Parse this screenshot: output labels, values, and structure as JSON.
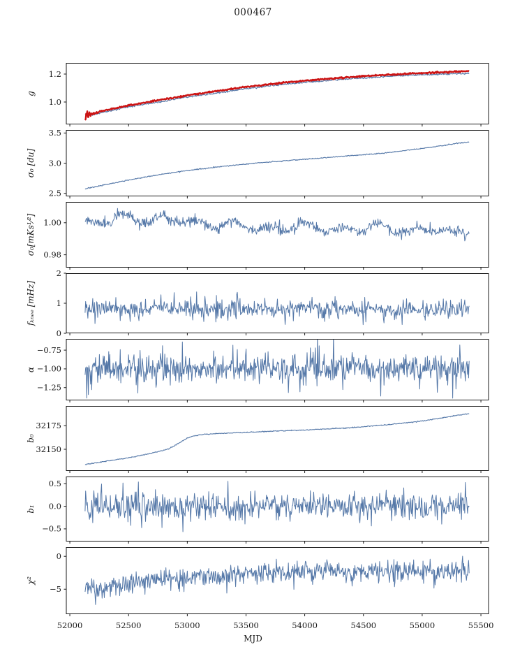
{
  "chart_data": {
    "type": "line",
    "title": "000467",
    "xlabel": "MJD",
    "xlim": [
      51970,
      55565
    ],
    "x_start": 52130,
    "x_end": 55400,
    "n_points": 700,
    "grid": false,
    "legend": "none",
    "colors": {
      "line_blue": "#5578a8",
      "line_red": "#cc1414",
      "axis": "#000000"
    },
    "xticks": [
      {
        "v": 52000,
        "label": "52000"
      },
      {
        "v": 52500,
        "label": "52500"
      },
      {
        "v": 53000,
        "label": "53000"
      },
      {
        "v": 53500,
        "label": "53500"
      },
      {
        "v": 54000,
        "label": "54000"
      },
      {
        "v": 54500,
        "label": "54500"
      },
      {
        "v": 55000,
        "label": "55000"
      },
      {
        "v": 55500,
        "label": "55500"
      }
    ],
    "panels": [
      {
        "id": "g",
        "ylabel": "g",
        "ylim": [
          0.84,
          1.28
        ],
        "yticks": [
          {
            "v": 1.0,
            "label": "1.0"
          },
          {
            "v": 1.2,
            "label": "1.2"
          }
        ],
        "series": [
          {
            "name": "g-fit-blue",
            "color": "#5578a8",
            "width": 1.1,
            "noise": 0.003,
            "trend": [
              [
                52130,
                0.915
              ],
              [
                52180,
                0.905
              ],
              [
                52300,
                0.93
              ],
              [
                52500,
                0.965
              ],
              [
                52750,
                1.0
              ],
              [
                53000,
                1.035
              ],
              [
                53250,
                1.065
              ],
              [
                53500,
                1.095
              ],
              [
                53750,
                1.12
              ],
              [
                54000,
                1.14
              ],
              [
                54250,
                1.158
              ],
              [
                54500,
                1.173
              ],
              [
                54750,
                1.185
              ],
              [
                55000,
                1.195
              ],
              [
                55200,
                1.2
              ],
              [
                55400,
                1.205
              ]
            ]
          },
          {
            "name": "g-overlay-red",
            "color": "#cc1414",
            "width": 2.4,
            "noise": 0.0025,
            "start_spread": 0.042,
            "trend": [
              [
                52130,
                0.91
              ],
              [
                52180,
                0.912
              ],
              [
                52300,
                0.94
              ],
              [
                52500,
                0.975
              ],
              [
                52750,
                1.012
              ],
              [
                53000,
                1.048
              ],
              [
                53250,
                1.078
              ],
              [
                53500,
                1.108
              ],
              [
                53750,
                1.132
              ],
              [
                54000,
                1.152
              ],
              [
                54250,
                1.17
              ],
              [
                54500,
                1.185
              ],
              [
                54750,
                1.197
              ],
              [
                55000,
                1.207
              ],
              [
                55200,
                1.214
              ],
              [
                55400,
                1.222
              ]
            ]
          }
        ]
      },
      {
        "id": "sigma0-du",
        "ylabel": "σ₀ [du]",
        "ylim": [
          2.45,
          3.55
        ],
        "yticks": [
          {
            "v": 2.5,
            "label": "2.5"
          },
          {
            "v": 3.0,
            "label": "3.0"
          },
          {
            "v": 3.5,
            "label": "3.5"
          }
        ],
        "series": [
          {
            "name": "sigma0-du",
            "color": "#5578a8",
            "width": 1.1,
            "noise": 0.004,
            "trend": [
              [
                52130,
                2.575
              ],
              [
                52300,
                2.64
              ],
              [
                52500,
                2.72
              ],
              [
                52700,
                2.79
              ],
              [
                52900,
                2.85
              ],
              [
                53100,
                2.9
              ],
              [
                53300,
                2.945
              ],
              [
                53500,
                2.985
              ],
              [
                53700,
                3.02
              ],
              [
                53900,
                3.05
              ],
              [
                54100,
                3.08
              ],
              [
                54300,
                3.11
              ],
              [
                54500,
                3.14
              ],
              [
                54700,
                3.17
              ],
              [
                54900,
                3.22
              ],
              [
                55100,
                3.27
              ],
              [
                55300,
                3.33
              ],
              [
                55400,
                3.35
              ]
            ]
          }
        ]
      },
      {
        "id": "sigma0-mks",
        "ylabel": "σ₀[mKs¹⁄²]",
        "ylim": [
          0.972,
          1.013
        ],
        "yticks": [
          {
            "v": 0.98,
            "label": "0.98"
          },
          {
            "v": 1.0,
            "label": "1.00"
          }
        ],
        "series": [
          {
            "name": "sigma0-mks",
            "color": "#5578a8",
            "width": 1.0,
            "noise": 0.0016,
            "osc": {
              "amp": 0.0022,
              "period": 310,
              "phase": 1.2
            },
            "trend": [
              [
                52130,
                0.998
              ],
              [
                52250,
                1.001
              ],
              [
                52450,
                1.004
              ],
              [
                52700,
                1.001
              ],
              [
                52900,
                1.003
              ],
              [
                53100,
                0.998
              ],
              [
                53400,
                0.999
              ],
              [
                53700,
                0.996
              ],
              [
                54000,
                0.998
              ],
              [
                54300,
                0.995
              ],
              [
                54600,
                0.998
              ],
              [
                54900,
                0.994
              ],
              [
                55100,
                0.997
              ],
              [
                55250,
                0.993
              ],
              [
                55400,
                0.996
              ]
            ]
          }
        ]
      },
      {
        "id": "fknee",
        "ylabel": "fₖₙₑₑ [mHz]",
        "ylim": [
          0,
          2
        ],
        "yticks": [
          {
            "v": 0,
            "label": "0"
          },
          {
            "v": 1,
            "label": "1"
          },
          {
            "v": 2,
            "label": "2"
          }
        ],
        "series": [
          {
            "name": "fknee",
            "color": "#5578a8",
            "width": 1.0,
            "noise": 0.14,
            "spike": {
              "prob": 0.06,
              "amp": 0.35
            },
            "trend": [
              [
                52130,
                0.85
              ],
              [
                53500,
                0.8
              ],
              [
                55400,
                0.78
              ]
            ]
          }
        ]
      },
      {
        "id": "alpha",
        "ylabel": "α",
        "ylim": [
          -1.42,
          -0.6
        ],
        "yticks": [
          {
            "v": -0.75,
            "label": "−0.75"
          },
          {
            "v": -1.0,
            "label": "−1.00"
          },
          {
            "v": -1.25,
            "label": "−1.25"
          }
        ],
        "series": [
          {
            "name": "alpha",
            "color": "#5578a8",
            "width": 1.0,
            "noise": 0.09,
            "spike": {
              "prob": 0.07,
              "amp": 0.25
            },
            "trend": [
              [
                52130,
                -1.0
              ],
              [
                55400,
                -1.0
              ]
            ]
          }
        ]
      },
      {
        "id": "b0",
        "ylabel": "b₀",
        "ylim": [
          32127,
          32196
        ],
        "yticks": [
          {
            "v": 32150,
            "label": "32150"
          },
          {
            "v": 32175,
            "label": "32175"
          }
        ],
        "series": [
          {
            "name": "b0",
            "color": "#5578a8",
            "width": 1.1,
            "noise": 0.25,
            "trend": [
              [
                52130,
                32134
              ],
              [
                52250,
                32136
              ],
              [
                52400,
                32139
              ],
              [
                52550,
                32142
              ],
              [
                52700,
                32146
              ],
              [
                52800,
                32149
              ],
              [
                52850,
                32151
              ],
              [
                52950,
                32158
              ],
              [
                53000,
                32162
              ],
              [
                53050,
                32164
              ],
              [
                53150,
                32166
              ],
              [
                53300,
                32167
              ],
              [
                53500,
                32168
              ],
              [
                53800,
                32169.5
              ],
              [
                54100,
                32171
              ],
              [
                54400,
                32173
              ],
              [
                54700,
                32176
              ],
              [
                55000,
                32180
              ],
              [
                55200,
                32184
              ],
              [
                55350,
                32187
              ],
              [
                55400,
                32188
              ]
            ]
          }
        ]
      },
      {
        "id": "b1",
        "ylabel": "b₁",
        "ylim": [
          -0.78,
          0.66
        ],
        "yticks": [
          {
            "v": -0.5,
            "label": "−0.5"
          },
          {
            "v": 0.0,
            "label": "0.0"
          },
          {
            "v": 0.5,
            "label": "0.5"
          }
        ],
        "series": [
          {
            "name": "b1",
            "color": "#5578a8",
            "width": 1.0,
            "noise": 0.14,
            "spike": {
              "prob": 0.05,
              "amp": 0.3
            },
            "trend": [
              [
                52130,
                0.0
              ],
              [
                55400,
                0.0
              ]
            ]
          }
        ]
      },
      {
        "id": "chi2",
        "ylabel": "χ²",
        "ylim": [
          -8.8,
          1.4
        ],
        "yticks": [
          {
            "v": -5,
            "label": "−5"
          },
          {
            "v": 0,
            "label": "0"
          }
        ],
        "series": [
          {
            "name": "chi2",
            "color": "#5578a8",
            "width": 1.0,
            "noise": 0.75,
            "spike": {
              "prob": 0.05,
              "amp": 1.2,
              "sign": -1
            },
            "trend": [
              [
                52130,
                -4.2
              ],
              [
                52250,
                -5.0
              ],
              [
                52400,
                -4.6
              ],
              [
                52600,
                -3.8
              ],
              [
                52800,
                -3.4
              ],
              [
                53000,
                -3.2
              ],
              [
                53300,
                -2.8
              ],
              [
                53600,
                -2.6
              ],
              [
                54000,
                -2.3
              ],
              [
                54500,
                -2.3
              ],
              [
                55000,
                -2.2
              ],
              [
                55400,
                -2.0
              ]
            ]
          }
        ]
      }
    ]
  }
}
